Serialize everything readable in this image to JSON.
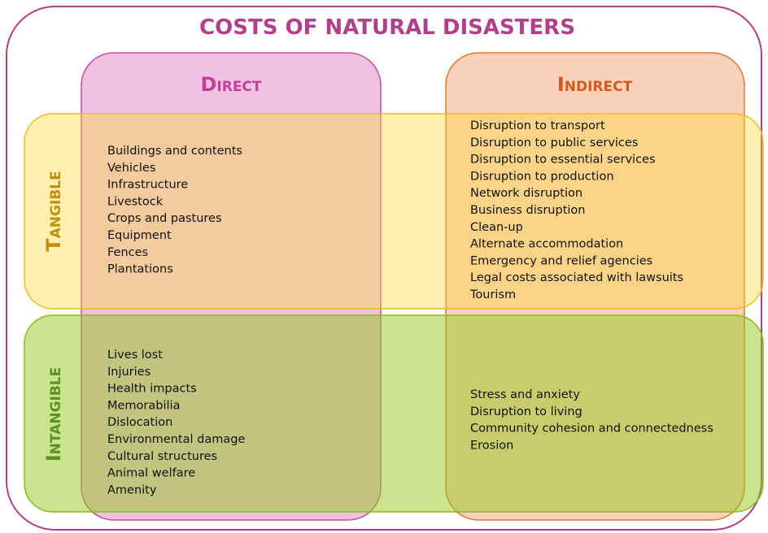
{
  "title": "COSTS OF NATURAL DISASTERS",
  "columns": [
    "Direct",
    "Indirect"
  ],
  "rows": [
    "Tangible",
    "Intangible"
  ],
  "cells": {
    "tangible_direct": [
      "Buildings and contents",
      "Vehicles",
      "Infrastructure",
      "Livestock",
      "Crops and pastures",
      "Equipment",
      "Fences",
      "Plantations"
    ],
    "tangible_indirect": [
      "Disruption to transport",
      "Disruption to public services",
      "Disruption to essential services",
      "Disruption to production",
      "Network disruption",
      "Business disruption",
      "Clean-up",
      "Alternate accommodation",
      "Emergency and relief agencies",
      "Legal costs associated with lawsuits",
      "Tourism"
    ],
    "intangible_direct": [
      "Lives lost",
      "Injuries",
      "Health impacts",
      "Memorabilia",
      "Dislocation",
      "Environmental damage",
      "Cultural structures",
      "Animal welfare",
      "Amenity"
    ],
    "intangible_indirect": [
      "Stress and anxiety",
      "Disruption to living",
      "Community cohesion and connectedness",
      "Erosion"
    ]
  }
}
